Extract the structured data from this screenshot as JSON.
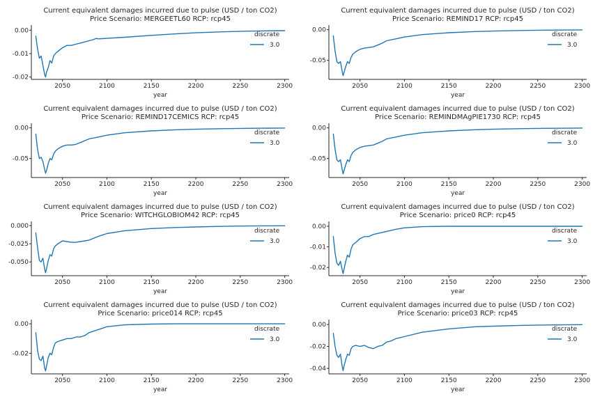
{
  "chart_data": [
    {
      "type": "line",
      "title": "Current equivalent damages incurred due to pulse (USD / ton CO2)",
      "subtitle": "Price Scenario: MERGEETL60 RCP: rcp45",
      "xlabel": "year",
      "ylabel": "",
      "xlim": [
        2015,
        2305
      ],
      "ylim": [
        -0.021,
        0.001
      ],
      "xticks": [
        2050,
        2100,
        2150,
        2200,
        2250,
        2300
      ],
      "yticks": [
        0.0,
        -0.01,
        -0.02
      ],
      "ytick_labels": [
        "0.00",
        "-0.01",
        "-0.02"
      ],
      "legend": {
        "title": "discrate",
        "position": "right"
      },
      "series": [
        {
          "name": "3.0",
          "color": "#1f77b4",
          "x": [
            2020,
            2022,
            2024,
            2026,
            2028,
            2030,
            2031,
            2032,
            2034,
            2036,
            2038,
            2040,
            2042,
            2045,
            2050,
            2055,
            2060,
            2065,
            2070,
            2075,
            2080,
            2085,
            2088,
            2090,
            2095,
            2100,
            2120,
            2150,
            2180,
            2200,
            2230,
            2260,
            2300
          ],
          "y": [
            -0.0025,
            -0.008,
            -0.012,
            -0.011,
            -0.015,
            -0.019,
            -0.02,
            -0.018,
            -0.016,
            -0.013,
            -0.014,
            -0.011,
            -0.01,
            -0.009,
            -0.0075,
            -0.0065,
            -0.0065,
            -0.006,
            -0.0055,
            -0.005,
            -0.0045,
            -0.004,
            -0.0035,
            -0.0037,
            -0.0036,
            -0.0035,
            -0.003,
            -0.0022,
            -0.0015,
            -0.0011,
            -0.0007,
            -0.0004,
            -0.0002
          ]
        }
      ]
    },
    {
      "type": "line",
      "title": "Current equivalent damages incurred due to pulse (USD / ton CO2)",
      "subtitle": "Price Scenario: REMIND17 RCP: rcp45",
      "xlabel": "year",
      "ylabel": "",
      "xlim": [
        2015,
        2305
      ],
      "ylim": [
        -0.081,
        0.003
      ],
      "xticks": [
        2050,
        2100,
        2150,
        2200,
        2250,
        2300
      ],
      "yticks": [
        0.0,
        -0.05
      ],
      "ytick_labels": [
        "0.00",
        "-0.05"
      ],
      "legend": {
        "title": "discrate",
        "position": "right"
      },
      "series": [
        {
          "name": "3.0",
          "color": "#1f77b4",
          "x": [
            2020,
            2022,
            2024,
            2026,
            2028,
            2030,
            2031,
            2032,
            2034,
            2036,
            2038,
            2040,
            2042,
            2045,
            2050,
            2055,
            2060,
            2065,
            2070,
            2075,
            2080,
            2090,
            2100,
            2120,
            2150,
            2180,
            2200,
            2230,
            2260,
            2300
          ],
          "y": [
            -0.01,
            -0.035,
            -0.052,
            -0.055,
            -0.052,
            -0.068,
            -0.075,
            -0.07,
            -0.06,
            -0.052,
            -0.055,
            -0.045,
            -0.04,
            -0.036,
            -0.032,
            -0.03,
            -0.029,
            -0.028,
            -0.025,
            -0.022,
            -0.018,
            -0.015,
            -0.012,
            -0.008,
            -0.005,
            -0.003,
            -0.0022,
            -0.0013,
            -0.0007,
            -0.0003
          ]
        }
      ]
    },
    {
      "type": "line",
      "title": "Current equivalent damages incurred due to pulse (USD / ton CO2)",
      "subtitle": "Price Scenario: REMIND17CEMICS RCP: rcp45",
      "xlabel": "year",
      "ylabel": "",
      "xlim": [
        2015,
        2305
      ],
      "ylim": [
        -0.081,
        0.003
      ],
      "xticks": [
        2050,
        2100,
        2150,
        2200,
        2250,
        2300
      ],
      "yticks": [
        0.0,
        -0.05
      ],
      "ytick_labels": [
        "0.00",
        "-0.05"
      ],
      "legend": {
        "title": "discrate",
        "position": "right"
      },
      "series": [
        {
          "name": "3.0",
          "color": "#1f77b4",
          "x": [
            2020,
            2022,
            2024,
            2026,
            2028,
            2030,
            2031,
            2032,
            2034,
            2036,
            2038,
            2040,
            2042,
            2045,
            2050,
            2055,
            2060,
            2065,
            2070,
            2075,
            2080,
            2090,
            2100,
            2120,
            2150,
            2180,
            2200,
            2230,
            2260,
            2300
          ],
          "y": [
            -0.01,
            -0.035,
            -0.05,
            -0.048,
            -0.055,
            -0.068,
            -0.074,
            -0.07,
            -0.058,
            -0.05,
            -0.052,
            -0.043,
            -0.038,
            -0.034,
            -0.03,
            -0.028,
            -0.028,
            -0.027,
            -0.024,
            -0.021,
            -0.018,
            -0.015,
            -0.012,
            -0.008,
            -0.005,
            -0.003,
            -0.0022,
            -0.0013,
            -0.0007,
            -0.0003
          ]
        }
      ]
    },
    {
      "type": "line",
      "title": "Current equivalent damages incurred due to pulse (USD / ton CO2)",
      "subtitle": "Price Scenario: REMINDMAgPIE1730 RCP: rcp45",
      "xlabel": "year",
      "ylabel": "",
      "xlim": [
        2015,
        2305
      ],
      "ylim": [
        -0.081,
        0.003
      ],
      "xticks": [
        2050,
        2100,
        2150,
        2200,
        2250,
        2300
      ],
      "yticks": [
        0.0,
        -0.05
      ],
      "ytick_labels": [
        "0.00",
        "-0.05"
      ],
      "legend": {
        "title": "discrate",
        "position": "right"
      },
      "series": [
        {
          "name": "3.0",
          "color": "#1f77b4",
          "x": [
            2020,
            2022,
            2024,
            2026,
            2028,
            2030,
            2031,
            2032,
            2034,
            2036,
            2038,
            2040,
            2042,
            2045,
            2050,
            2055,
            2060,
            2065,
            2070,
            2075,
            2080,
            2090,
            2100,
            2120,
            2150,
            2180,
            2200,
            2230,
            2260,
            2300
          ],
          "y": [
            -0.01,
            -0.035,
            -0.052,
            -0.055,
            -0.052,
            -0.068,
            -0.075,
            -0.07,
            -0.06,
            -0.052,
            -0.055,
            -0.045,
            -0.04,
            -0.036,
            -0.032,
            -0.03,
            -0.029,
            -0.028,
            -0.025,
            -0.022,
            -0.018,
            -0.015,
            -0.012,
            -0.008,
            -0.005,
            -0.003,
            -0.0022,
            -0.0013,
            -0.0007,
            -0.0003
          ]
        }
      ]
    },
    {
      "type": "line",
      "title": "Current equivalent damages incurred due to pulse (USD / ton CO2)",
      "subtitle": "Price Scenario: WITCHGLOBIOM42 RCP: rcp45",
      "xlabel": "year",
      "ylabel": "",
      "xlim": [
        2015,
        2305
      ],
      "ylim": [
        -0.069,
        0.002
      ],
      "xticks": [
        2050,
        2100,
        2150,
        2200,
        2250,
        2300
      ],
      "yticks": [
        0.0,
        -0.025,
        -0.05
      ],
      "ytick_labels": [
        "0.000",
        "-0.025",
        "-0.050"
      ],
      "legend": {
        "title": "discrate",
        "position": "right"
      },
      "series": [
        {
          "name": "3.0",
          "color": "#1f77b4",
          "x": [
            2020,
            2022,
            2024,
            2026,
            2028,
            2030,
            2031,
            2032,
            2034,
            2036,
            2038,
            2040,
            2042,
            2045,
            2050,
            2055,
            2060,
            2065,
            2070,
            2075,
            2080,
            2090,
            2100,
            2120,
            2150,
            2180,
            2200,
            2230,
            2260,
            2300
          ],
          "y": [
            -0.01,
            -0.03,
            -0.048,
            -0.05,
            -0.045,
            -0.06,
            -0.065,
            -0.06,
            -0.048,
            -0.04,
            -0.042,
            -0.032,
            -0.028,
            -0.025,
            -0.021,
            -0.022,
            -0.023,
            -0.023,
            -0.022,
            -0.021,
            -0.02,
            -0.015,
            -0.011,
            -0.007,
            -0.004,
            -0.0025,
            -0.0018,
            -0.001,
            -0.0005,
            -0.0002
          ]
        }
      ]
    },
    {
      "type": "line",
      "title": "Current equivalent damages incurred due to pulse (USD / ton CO2)",
      "subtitle": "Price Scenario: price0 RCP: rcp45",
      "xlabel": "year",
      "ylabel": "",
      "xlim": [
        2015,
        2305
      ],
      "ylim": [
        -0.024,
        0.001
      ],
      "xticks": [
        2050,
        2100,
        2150,
        2200,
        2250,
        2300
      ],
      "yticks": [
        0.0,
        -0.01,
        -0.02
      ],
      "ytick_labels": [
        "0.00",
        "-0.01",
        "-0.02"
      ],
      "legend": {
        "title": "discrate",
        "position": "right"
      },
      "series": [
        {
          "name": "3.0",
          "color": "#1f77b4",
          "x": [
            2020,
            2022,
            2024,
            2026,
            2028,
            2030,
            2031,
            2032,
            2034,
            2036,
            2038,
            2040,
            2042,
            2045,
            2050,
            2055,
            2060,
            2065,
            2070,
            2075,
            2080,
            2090,
            2100,
            2120,
            2150,
            2180,
            2200,
            2230,
            2260,
            2300
          ],
          "y": [
            -0.005,
            -0.013,
            -0.018,
            -0.019,
            -0.017,
            -0.021,
            -0.023,
            -0.021,
            -0.017,
            -0.014,
            -0.015,
            -0.011,
            -0.009,
            -0.008,
            -0.006,
            -0.005,
            -0.005,
            -0.004,
            -0.0035,
            -0.003,
            -0.0025,
            -0.0015,
            -0.0008,
            -0.0002,
            0.0,
            0.0,
            0.0,
            0.0,
            0.0,
            0.0
          ]
        }
      ]
    },
    {
      "type": "line",
      "title": "Current equivalent damages incurred due to pulse (USD / ton CO2)",
      "subtitle": "Price Scenario: price014 RCP: rcp45",
      "xlabel": "year",
      "ylabel": "",
      "xlim": [
        2015,
        2305
      ],
      "ylim": [
        -0.034,
        0.001
      ],
      "xticks": [
        2050,
        2100,
        2150,
        2200,
        2250,
        2300
      ],
      "yticks": [
        0.0,
        -0.02
      ],
      "ytick_labels": [
        "0.00",
        "-0.02"
      ],
      "legend": {
        "title": "discrate",
        "position": "right"
      },
      "series": [
        {
          "name": "3.0",
          "color": "#1f77b4",
          "x": [
            2020,
            2022,
            2024,
            2026,
            2028,
            2030,
            2031,
            2032,
            2034,
            2036,
            2038,
            2040,
            2042,
            2045,
            2050,
            2055,
            2060,
            2065,
            2070,
            2075,
            2080,
            2090,
            2100,
            2120,
            2150,
            2180,
            2200,
            2230,
            2260,
            2300
          ],
          "y": [
            -0.006,
            -0.018,
            -0.024,
            -0.025,
            -0.022,
            -0.03,
            -0.032,
            -0.029,
            -0.023,
            -0.02,
            -0.021,
            -0.016,
            -0.013,
            -0.012,
            -0.011,
            -0.01,
            -0.01,
            -0.009,
            -0.009,
            -0.008,
            -0.006,
            -0.004,
            -0.002,
            -0.0007,
            -0.0002,
            0.0,
            0.0,
            0.0,
            0.0,
            0.0
          ]
        }
      ]
    },
    {
      "type": "line",
      "title": "Current equivalent damages incurred due to pulse (USD / ton CO2)",
      "subtitle": "Price Scenario: price03 RCP: rcp45",
      "xlabel": "year",
      "ylabel": "",
      "xlim": [
        2015,
        2305
      ],
      "ylim": [
        -0.045,
        0.002
      ],
      "xticks": [
        2050,
        2100,
        2150,
        2200,
        2250,
        2300
      ],
      "yticks": [
        0.0,
        -0.02,
        -0.04
      ],
      "ytick_labels": [
        "0.00",
        "-0.02",
        "-0.04"
      ],
      "legend": {
        "title": "discrate",
        "position": "right"
      },
      "series": [
        {
          "name": "3.0",
          "color": "#1f77b4",
          "x": [
            2020,
            2022,
            2024,
            2026,
            2028,
            2030,
            2031,
            2032,
            2034,
            2036,
            2038,
            2040,
            2042,
            2045,
            2050,
            2055,
            2060,
            2065,
            2070,
            2075,
            2080,
            2085,
            2090,
            2100,
            2120,
            2150,
            2180,
            2200,
            2230,
            2260,
            2300
          ],
          "y": [
            -0.008,
            -0.02,
            -0.028,
            -0.03,
            -0.027,
            -0.038,
            -0.042,
            -0.038,
            -0.032,
            -0.027,
            -0.028,
            -0.022,
            -0.02,
            -0.019,
            -0.02,
            -0.019,
            -0.021,
            -0.022,
            -0.02,
            -0.019,
            -0.016,
            -0.015,
            -0.013,
            -0.011,
            -0.007,
            -0.004,
            -0.002,
            -0.0015,
            -0.0008,
            -0.0004,
            -0.0001
          ]
        }
      ]
    }
  ]
}
